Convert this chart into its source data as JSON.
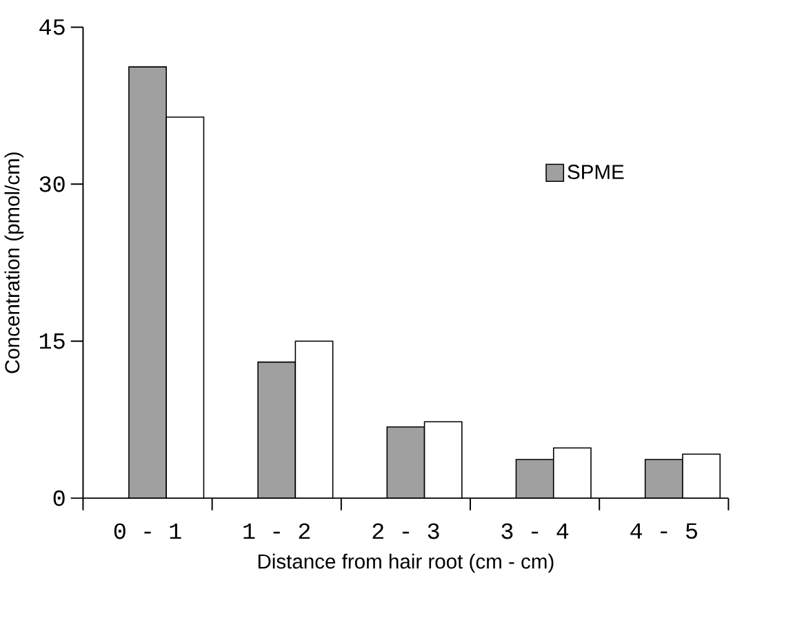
{
  "chart_data": {
    "type": "bar",
    "xlabel": "Distance from hair root (cm - cm)",
    "ylabel": "Concentration (pmol/cm)",
    "categories": [
      "0 - 1",
      "1 - 2",
      "2 - 3",
      "3 - 4",
      "4 - 5"
    ],
    "series": [
      {
        "name": "SPME",
        "color": "#a0a0a0",
        "values": [
          41.2,
          13.0,
          6.8,
          3.7,
          3.7
        ]
      },
      {
        "color": "#ffffff",
        "values": [
          36.4,
          15.0,
          7.3,
          4.8,
          4.2
        ]
      }
    ],
    "ylim": [
      0,
      45
    ],
    "yticks": [
      0,
      15,
      30,
      45
    ],
    "grid": false,
    "legend": "top right"
  }
}
